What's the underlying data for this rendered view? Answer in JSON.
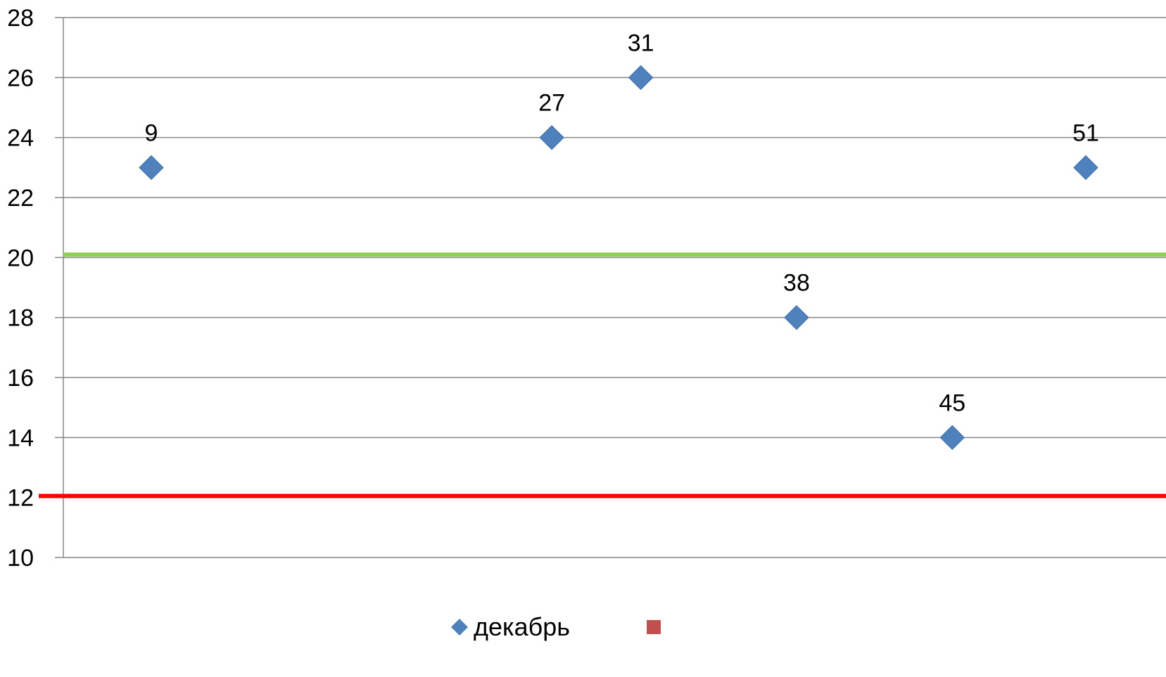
{
  "chart_data": {
    "type": "scatter",
    "title": "",
    "xlabel": "",
    "ylabel": "",
    "ylim": [
      10,
      28
    ],
    "xlim": [
      0,
      52
    ],
    "yticks": [
      "10",
      "12",
      "14",
      "16",
      "18",
      "20",
      "22",
      "24",
      "26",
      "28"
    ],
    "grid": true,
    "legend": "bottom-center",
    "series": [
      {
        "name": "декабрь",
        "color": "#4F81BD",
        "marker": "diamond",
        "points": [
          {
            "x": 9,
            "y": 23,
            "label": "9"
          },
          {
            "x": 27,
            "y": 24,
            "label": "27"
          },
          {
            "x": 31,
            "y": 26,
            "label": "31"
          },
          {
            "x": 38,
            "y": 18,
            "label": "38"
          },
          {
            "x": 45,
            "y": 14,
            "label": "45"
          },
          {
            "x": 51,
            "y": 23,
            "label": "51"
          }
        ]
      },
      {
        "name": "",
        "color": "#C0504D",
        "marker": "square",
        "points": []
      }
    ],
    "reference_lines": [
      {
        "y": 20.1,
        "color": "#92D050"
      },
      {
        "y": 12.05,
        "color": "#FF0000"
      }
    ]
  }
}
